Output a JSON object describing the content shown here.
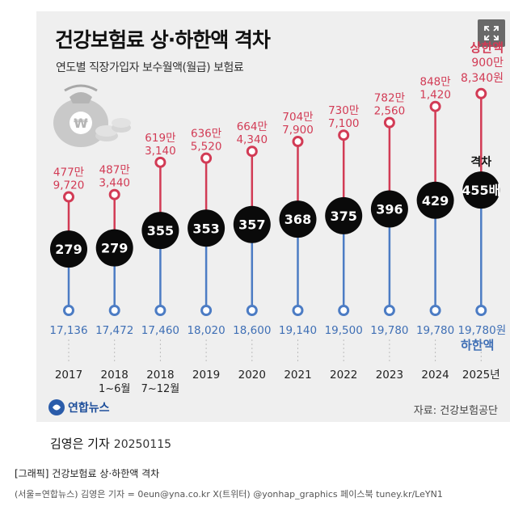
{
  "title": "건강보험료 상·하한액 격차",
  "subtitle": "연도별 직장가입자 보수월액(월급) 보험료",
  "legend": {
    "upper": "상한액",
    "lower": "하한액",
    "upper_last_value": "900만\n8,340원",
    "lower_last_value": "19,780원",
    "ratio_label": "격차"
  },
  "source": "자료: 건강보험공단",
  "logo_text": "연합뉴스",
  "byline": {
    "author": "김영은 기자",
    "date": "20250115"
  },
  "caption": "[그래픽] 건강보험료 상·하한액 격차",
  "credit": "(서울=연합뉴스) 김영은 기자 = 0eun@yna.co.kr X(트위터) @yonhap_graphics 페이스북 tuney.kr/LeYN1",
  "icons": {
    "expand": "expand-icon",
    "money_bag": "money-bag-icon",
    "logo": "yonhap-logo-icon"
  },
  "colors": {
    "upper": "#d23b55",
    "lower": "#4c7cc4",
    "lower_text": "#3f6fb5",
    "ratio_circle": "#0a0a0a",
    "card": "#efefef"
  },
  "chart_data": {
    "type": "dumbbell",
    "categories": [
      "2017",
      "2018\n1~6월",
      "2018\n7~12월",
      "2019",
      "2020",
      "2021",
      "2022",
      "2023",
      "2024",
      "2025년"
    ],
    "upper_labels": [
      "477만\n9,720",
      "487만\n3,440",
      "619만\n3,140",
      "636만\n5,520",
      "664만\n4,340",
      "704만\n7,900",
      "730만\n7,100",
      "782만\n2,560",
      "848만\n1,420",
      ""
    ],
    "lower_labels": [
      "17,136",
      "17,472",
      "17,460",
      "18,020",
      "18,600",
      "19,140",
      "19,500",
      "19,780",
      "19,780",
      ""
    ],
    "ratio_labels": [
      "279",
      "279",
      "355",
      "353",
      "357",
      "368",
      "375",
      "396",
      "429",
      "455배"
    ],
    "series": [
      {
        "name": "상한액",
        "values": [
          4779720,
          4873440,
          6193140,
          6365520,
          6644340,
          7047900,
          7307100,
          7822560,
          8481420,
          9008340
        ]
      },
      {
        "name": "하한액",
        "values": [
          17136,
          17472,
          17460,
          18020,
          18600,
          19140,
          19500,
          19780,
          19780,
          19780
        ]
      }
    ],
    "ratio": [
      279,
      279,
      355,
      353,
      357,
      368,
      375,
      396,
      429,
      455
    ]
  }
}
